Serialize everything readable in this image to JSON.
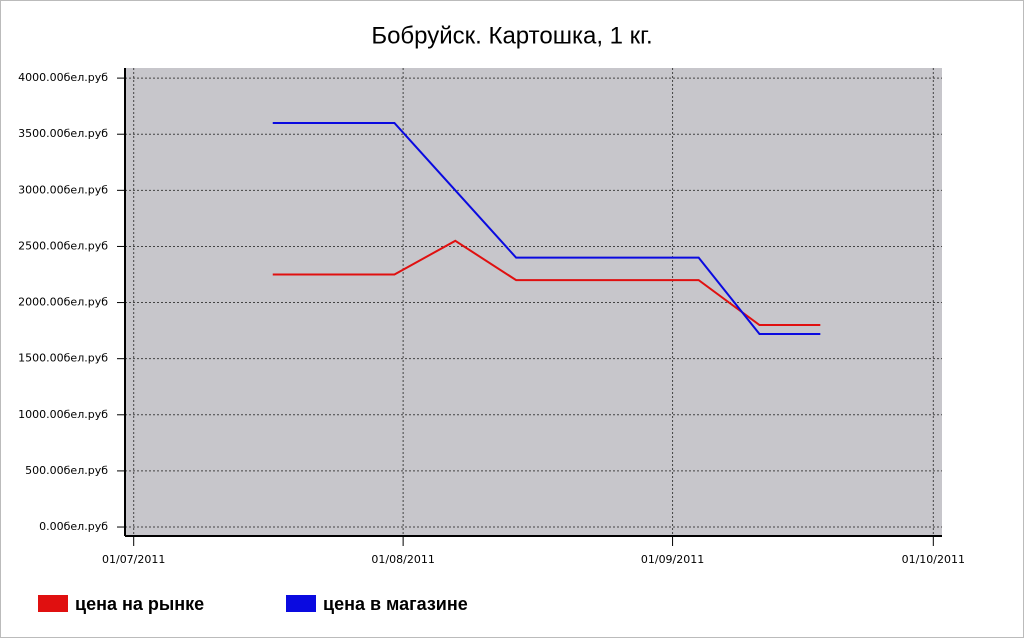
{
  "chart_data": {
    "type": "line",
    "title": "Бобруйск. Картошка, 1 кг.",
    "x": [
      "2011-07-17",
      "2011-07-24",
      "2011-07-31",
      "2011-08-07",
      "2011-08-14",
      "2011-08-21",
      "2011-08-28",
      "2011-09-04",
      "2011-09-11",
      "2011-09-18"
    ],
    "series": [
      {
        "name": "цена на рынке",
        "color": "#e01010",
        "values": [
          2250,
          2250,
          2250,
          2550,
          2200,
          2200,
          2200,
          2200,
          1800,
          1800
        ]
      },
      {
        "name": "цена в магазине",
        "color": "#0a0ae0",
        "values": [
          3600,
          3600,
          3600,
          3000,
          2400,
          2400,
          2400,
          2400,
          1720,
          1720
        ]
      }
    ],
    "xlim": [
      "2011-06-30",
      "2011-10-02"
    ],
    "xticks": [
      {
        "value": "2011-07-01",
        "label": "01/07/2011"
      },
      {
        "value": "2011-08-01",
        "label": "01/08/2011"
      },
      {
        "value": "2011-09-01",
        "label": "01/09/2011"
      },
      {
        "value": "2011-10-01",
        "label": "01/10/2011"
      }
    ],
    "ylim": [
      -80,
      4090
    ],
    "yticks": [
      {
        "value": 0,
        "label": "0.00бел.руб"
      },
      {
        "value": 500,
        "label": "500.00бел.руб"
      },
      {
        "value": 1000,
        "label": "1000.00бел.руб"
      },
      {
        "value": 1500,
        "label": "1500.00бел.руб"
      },
      {
        "value": 2000,
        "label": "2000.00бел.руб"
      },
      {
        "value": 2500,
        "label": "2500.00бел.руб"
      },
      {
        "value": 3000,
        "label": "3000.00бел.руб"
      },
      {
        "value": 3500,
        "label": "3500.00бел.руб"
      },
      {
        "value": 4000,
        "label": "4000.00бел.руб"
      }
    ],
    "grid": true
  }
}
